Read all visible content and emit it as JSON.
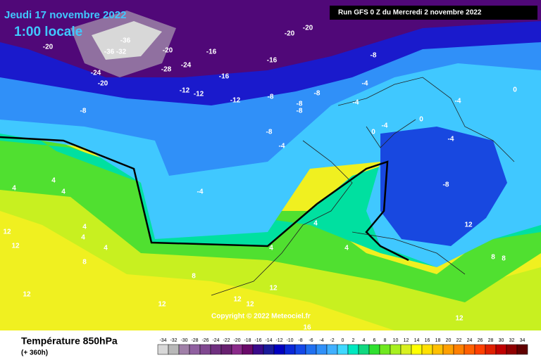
{
  "header": {
    "date": "Jeudi 17 novembre 2022",
    "time": "1:00 locale",
    "run": "Run GFS 0 Z du Mercredi 2 novembre 2022"
  },
  "copyright": "Copyright © 2022 Meteociel.fr",
  "footer": {
    "title": "Température 850hPa",
    "subtitle": "(+ 360h)"
  },
  "map_labels": [
    "-36",
    "-32",
    "-36",
    "-24",
    "-20",
    "-20",
    "-20",
    "-28",
    "-24",
    "-16",
    "-20",
    "-20",
    "-8",
    "-16",
    "-12",
    "-12",
    "-16",
    "-12",
    "-8",
    "-8",
    "-8",
    "-8",
    "-8",
    "-4",
    "-4",
    "-4",
    "0",
    "-4",
    "-8",
    "-4",
    "-4",
    "-4",
    "0",
    "0",
    "-8",
    "4",
    "4",
    "4",
    "12",
    "12",
    "4",
    "4",
    "8",
    "4",
    "4",
    "8",
    "12",
    "12",
    "12",
    "12",
    "16",
    "12",
    "8",
    "4",
    "4",
    "8",
    "12",
    "12"
  ],
  "legend": {
    "labels": [
      -34,
      -32,
      -30,
      -28,
      -26,
      -24,
      -22,
      -20,
      -18,
      -16,
      -14,
      -12,
      -10,
      -8,
      -6,
      -4,
      -2,
      0,
      2,
      4,
      6,
      8,
      10,
      12,
      14,
      16,
      18,
      20,
      22,
      24,
      26,
      28,
      30,
      32,
      34
    ],
    "colors": [
      "#d8d8d8",
      "#b8b8b8",
      "#a080a8",
      "#9060a0",
      "#804890",
      "#703080",
      "#682070",
      "#8a2a8a",
      "#6a0a6a",
      "#3a0a8a",
      "#1a1a9a",
      "#0000c0",
      "#0a28d8",
      "#1448e8",
      "#2070f0",
      "#3090f8",
      "#40b0ff",
      "#40d8ff",
      "#00e8c0",
      "#10d880",
      "#30e030",
      "#70e820",
      "#a8f020",
      "#d8f020",
      "#ffff00",
      "#ffe000",
      "#ffc000",
      "#ffa000",
      "#ff8000",
      "#ff6000",
      "#ff4000",
      "#e02000",
      "#c00000",
      "#900000",
      "#600000"
    ]
  }
}
